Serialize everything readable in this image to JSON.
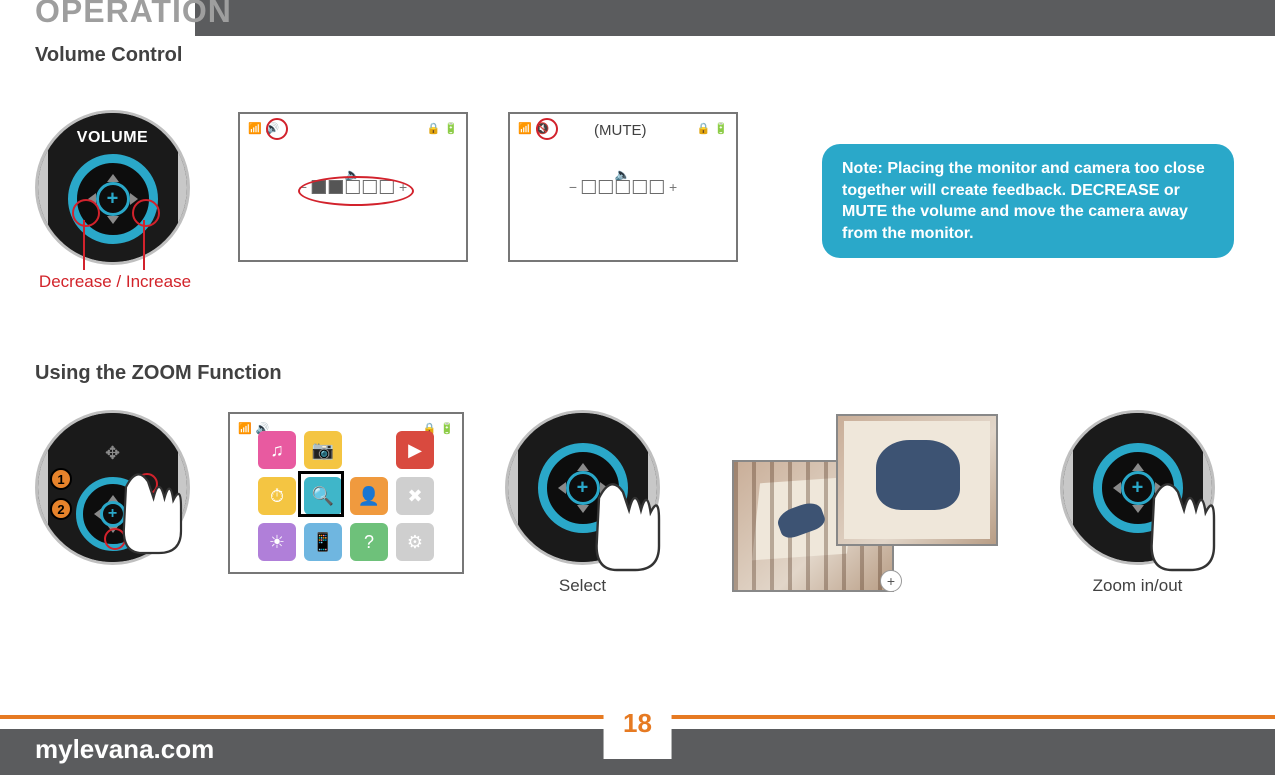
{
  "header": {
    "title": "OPERATION"
  },
  "section1": {
    "heading": "Volume Control",
    "dial_label": "VOLUME",
    "caption": "Decrease / Increase",
    "mute_label": "(MUTE)"
  },
  "note": {
    "text": "Note: Placing the monitor and camera too close together will create feedback. DECREASE or MUTE the volume and move the camera away from the monitor."
  },
  "section2": {
    "heading": "Using the ZOOM Function",
    "badge1": "1",
    "badge2": "2",
    "caption_select": "Select",
    "caption_zoom": "Zoom in/out"
  },
  "footer": {
    "site": "mylevana.com",
    "page": "18"
  },
  "colors": {
    "accent": "#2aa8c9",
    "red": "#d2232a",
    "orange_badge": "#e7832b",
    "footer_orange": "#e67a22",
    "gray_bar": "#5b5c5e",
    "heading_gray": "#9e9e9e"
  },
  "menu": {
    "items": [
      {
        "bg": "#e85aa0",
        "glyph": "♫"
      },
      {
        "bg": "#f4c542",
        "glyph": "📷"
      },
      {
        "bg": "#ffffff",
        "glyph": ""
      },
      {
        "bg": "#d94a3f",
        "glyph": "▶"
      },
      {
        "bg": "#f4c542",
        "glyph": "⏱"
      },
      {
        "bg": "#3fb6c9",
        "glyph": "🔍"
      },
      {
        "bg": "#f09a3e",
        "glyph": "👤"
      },
      {
        "bg": "#cfcfcf",
        "glyph": "✖"
      },
      {
        "bg": "#b07fd9",
        "glyph": "☀"
      },
      {
        "bg": "#6fb6e0",
        "glyph": "📱"
      },
      {
        "bg": "#6ec17a",
        "glyph": "?"
      },
      {
        "bg": "#cfcfcf",
        "glyph": "⚙"
      }
    ],
    "selected_index": 5
  },
  "volume_bar": {
    "total": 5,
    "filled": 2,
    "muted_filled": 0
  }
}
